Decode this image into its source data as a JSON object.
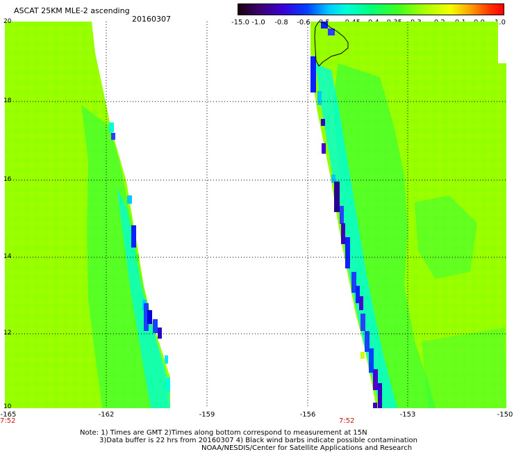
{
  "header": {
    "title": "ASCAT 25KM MLE-2 ascending",
    "date": "20160307"
  },
  "colorbar": {
    "labels": [
      "-15.0",
      "-1.0",
      "-0.8",
      "-0.6",
      "-0.5",
      "-0.45",
      "-0.4",
      "-0.35",
      "-0.3",
      "-0.2",
      "-0.1",
      "0.0",
      "1.0"
    ]
  },
  "axes": {
    "lat_labels": [
      "20",
      "18",
      "16",
      "14",
      "12",
      "10"
    ],
    "lon_labels": [
      "-165",
      "-162",
      "-159",
      "-156",
      "-153",
      "-150"
    ],
    "lon_range": [
      -165,
      -150
    ],
    "lat_range": [
      10,
      20
    ]
  },
  "times": {
    "left": "7:52",
    "right": "7:52"
  },
  "notes": {
    "line1": "Note: 1) Times are GMT 2)Times along bottom correspond to measurement at 15N",
    "line2": "3)Data buffer is 22 hrs from 20160307 4) Black wind barbs indicate possible contamination",
    "line3": "NOAA/NESDIS/Center for Satellite Applications and Research"
  }
}
